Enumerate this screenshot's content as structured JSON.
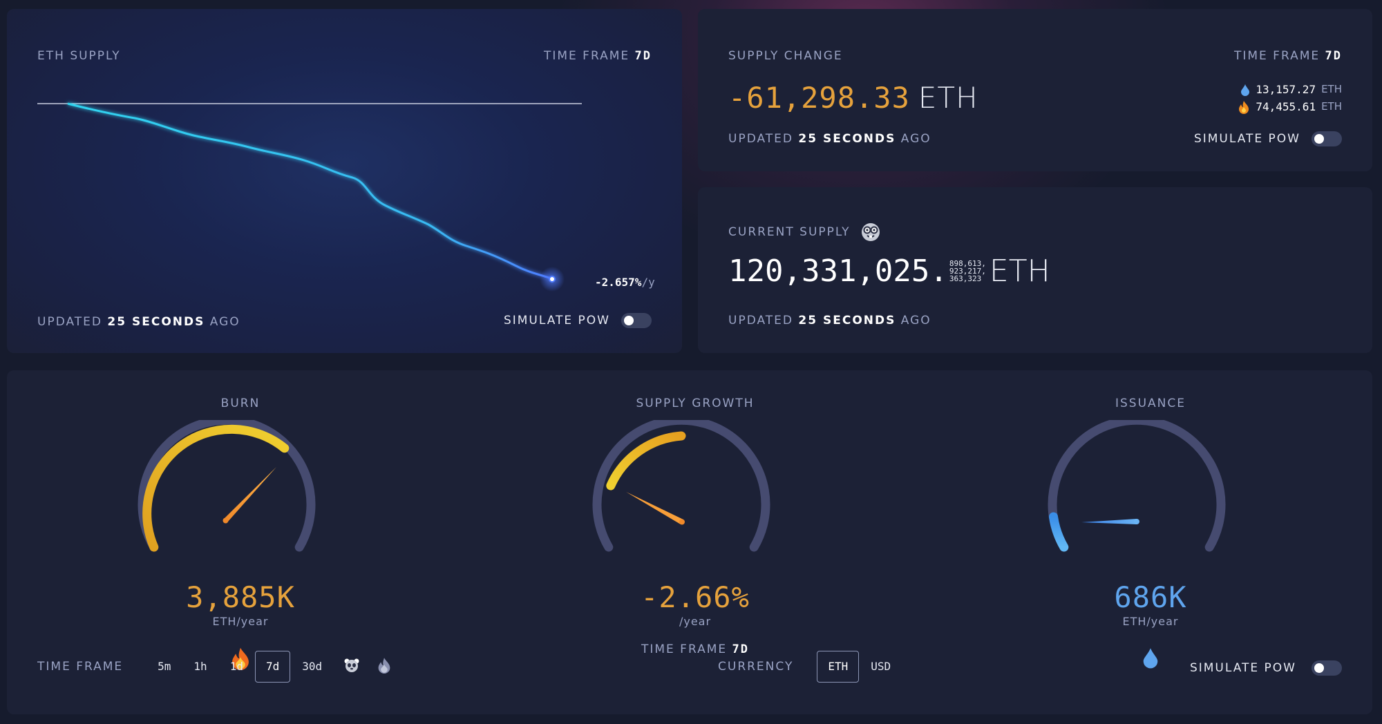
{
  "eth_supply": {
    "title": "ETH SUPPLY",
    "time_frame_label": "TIME FRAME",
    "time_frame_value": "7d",
    "rate_value": "-2.657%",
    "rate_unit": "/y",
    "updated_prefix": "UPDATED",
    "updated_value": "25 SECONDS",
    "updated_suffix": "AGO",
    "simulate_label": "SIMULATE PoW",
    "simulate_on": false,
    "line_color": "#39c6f2",
    "end_color": "#4f7bff"
  },
  "supply_change": {
    "title": "SUPPLY CHANGE",
    "time_frame_label": "TIME FRAME",
    "time_frame_value": "7d",
    "value": "-61,298.33",
    "unit": "ETH",
    "issued_value": "13,157.27",
    "issued_unit": "ETH",
    "issued_icon": "droplet-icon",
    "burned_value": "74,455.61",
    "burned_unit": "ETH",
    "burned_icon": "fire-icon",
    "updated_prefix": "UPDATED",
    "updated_value": "25 SECONDS",
    "updated_suffix": "AGO",
    "simulate_label": "SIMULATE PoW",
    "simulate_on": false
  },
  "current_supply": {
    "title": "CURRENT SUPPLY",
    "title_icon": "nerd-face-icon",
    "integer": "120,331,025.",
    "frac_line1": "898,613,",
    "frac_line2": "923,217,",
    "frac_line3": "363,323",
    "unit": "ETH",
    "updated_prefix": "UPDATED",
    "updated_value": "25 SECONDS",
    "updated_suffix": "AGO"
  },
  "gauges": {
    "burn": {
      "title": "BURN",
      "value": "3,885K",
      "unit": "ETH/year",
      "icon": "fire-icon",
      "fraction": 0.72,
      "color": "#e6a23c"
    },
    "supply_growth": {
      "title": "SUPPLY GROWTH",
      "value": "-2.66%",
      "unit": "/year",
      "time_frame_label": "TIME FRAME",
      "time_frame_value": "7d",
      "color": "#e6a23c"
    },
    "issuance": {
      "title": "ISSUANCE",
      "value": "686K",
      "unit": "ETH/year",
      "icon": "droplet-icon",
      "fraction": 0.08,
      "color": "#5fa5ee"
    },
    "time_frame_label": "TIME FRAME",
    "time_frames": [
      "5m",
      "1h",
      "1d",
      "7d",
      "30d"
    ],
    "active_time_frame": "7d",
    "extra_frame_icons": [
      "panda-icon",
      "fire-icon"
    ],
    "currency_label": "CURRENCY",
    "currencies": [
      "ETH",
      "USD"
    ],
    "active_currency": "ETH",
    "simulate_label": "SIMULATE PoW",
    "simulate_on": false
  }
}
